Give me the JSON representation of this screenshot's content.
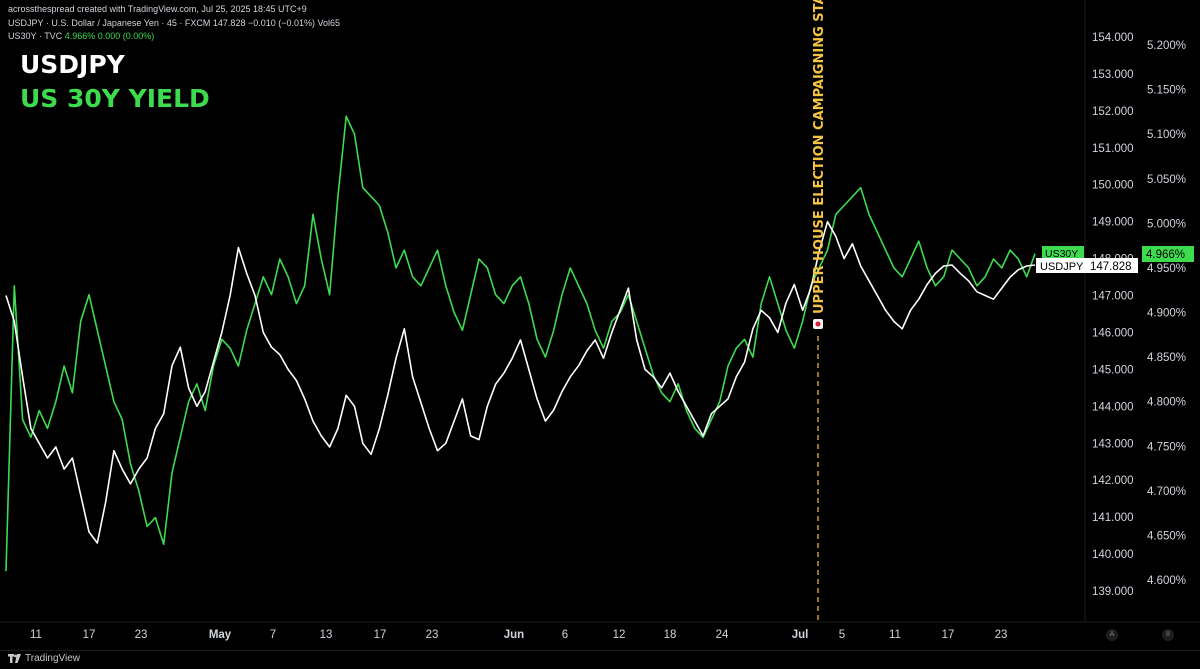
{
  "header": {
    "line1_prefix": "acrossthespread created with TradingView.com, Jul 25, 2025 18:45 UTC+9",
    "line2": "USDJPY · U.S. Dollar / Japanese Yen · 45 · FXCM  147.828  −0.010 (−0.01%)  Vol65",
    "line3_symbol": "US30Y · TVC",
    "line3_values": "4.966%  0.000 (0.00%)"
  },
  "title_usdjpy": "USDJPY",
  "title_us30y": "US 30Y YIELD",
  "annotation": "UPPER HOUSE ELECTION CAMPAIGNING START",
  "footer_brand": "TradingView",
  "scale_buttons": {
    "a": "A",
    "b": "8"
  },
  "colors": {
    "usdjpy": "#ffffff",
    "us30y": "#3ddc4f",
    "annotation": "#f5c542",
    "background": "#000000"
  },
  "chart_data": {
    "type": "line",
    "x_labels": [
      "11",
      "17",
      "23",
      "May",
      "7",
      "13",
      "17",
      "23",
      "Jun",
      "6",
      "12",
      "18",
      "24",
      "Jul",
      "5",
      "11",
      "17",
      "23"
    ],
    "left_axis_ticks": [
      "154.000",
      "153.000",
      "152.000",
      "151.000",
      "150.000",
      "149.000",
      "148.000",
      "147.000",
      "146.000",
      "145.000",
      "144.000",
      "143.000",
      "142.000",
      "141.000",
      "140.000",
      "139.000"
    ],
    "right_axis_ticks": [
      "5.200%",
      "5.150%",
      "5.100%",
      "5.050%",
      "5.000%",
      "4.950%",
      "4.900%",
      "4.850%",
      "4.800%",
      "4.750%",
      "4.700%",
      "4.650%",
      "4.600%"
    ],
    "last_values": {
      "usdjpy_label": "USDJPY",
      "usdjpy_value": "147.828",
      "us30y_label": "US30Y",
      "us30y_value": "4.966%"
    },
    "series": [
      {
        "name": "USDJPY",
        "axis": "left",
        "x": [
          0,
          1,
          2,
          3,
          4,
          5,
          6,
          7,
          8,
          9,
          10,
          11,
          12,
          13,
          14,
          15,
          16,
          17,
          18,
          19,
          20,
          21,
          22,
          23,
          24,
          25,
          26,
          27,
          28,
          29,
          30,
          31,
          32,
          33,
          34,
          35,
          36,
          37,
          38,
          39,
          40,
          41,
          42,
          43,
          44,
          45,
          46,
          47,
          48,
          49,
          50,
          51,
          52,
          53,
          54,
          55,
          56,
          57,
          58,
          59,
          60,
          61,
          62,
          63,
          64,
          65,
          66,
          67,
          68,
          69,
          70,
          71,
          72,
          73,
          74,
          75,
          76,
          77,
          78,
          79,
          80,
          81,
          82,
          83,
          84,
          85,
          86,
          87,
          88,
          89,
          90,
          91,
          92,
          93,
          94,
          95,
          96,
          97,
          98,
          99,
          100,
          101,
          102,
          103,
          104,
          105,
          106,
          107,
          108,
          109,
          110,
          111,
          112,
          113,
          114,
          115,
          116,
          117,
          118,
          119,
          120,
          121,
          122,
          123,
          124
        ],
        "values": [
          147.0,
          146.3,
          144.8,
          143.4,
          143.0,
          142.6,
          142.9,
          142.3,
          142.6,
          141.6,
          140.6,
          140.3,
          141.4,
          142.8,
          142.3,
          141.9,
          142.3,
          142.6,
          143.4,
          143.8,
          145.1,
          145.6,
          144.5,
          144.0,
          144.4,
          145.2,
          146.0,
          147.0,
          148.3,
          147.6,
          147.0,
          146.0,
          145.6,
          145.4,
          145.0,
          144.7,
          144.2,
          143.6,
          143.2,
          142.9,
          143.4,
          144.3,
          144.0,
          143.0,
          142.7,
          143.4,
          144.3,
          145.3,
          146.1,
          144.8,
          144.1,
          143.4,
          142.8,
          143.0,
          143.6,
          144.2,
          143.2,
          143.1,
          144.0,
          144.6,
          144.9,
          145.3,
          145.8,
          145.0,
          144.2,
          143.6,
          143.9,
          144.4,
          144.8,
          145.1,
          145.5,
          145.8,
          145.3,
          146.0,
          146.6,
          147.2,
          145.8,
          145.0,
          144.8,
          144.5,
          144.9,
          144.4,
          144.0,
          143.6,
          143.2,
          143.8,
          144.0,
          144.2,
          144.8,
          145.2,
          146.1,
          146.6,
          146.4,
          146.0,
          146.8,
          147.3,
          146.6,
          147.2,
          148.2,
          149.0,
          148.6,
          148.0,
          148.4,
          147.8,
          147.4,
          147.0,
          146.6,
          146.3,
          146.1,
          146.6,
          146.9,
          147.3,
          147.6,
          147.8,
          147.828,
          147.6,
          147.4,
          147.1,
          147.0,
          146.9,
          147.2,
          147.5,
          147.7,
          147.8,
          147.828
        ]
      },
      {
        "name": "US30Y",
        "axis": "right",
        "x": [
          0,
          1,
          2,
          3,
          4,
          5,
          6,
          7,
          8,
          9,
          10,
          11,
          12,
          13,
          14,
          15,
          16,
          17,
          18,
          19,
          20,
          21,
          22,
          23,
          24,
          25,
          26,
          27,
          28,
          29,
          30,
          31,
          32,
          33,
          34,
          35,
          36,
          37,
          38,
          39,
          40,
          41,
          42,
          43,
          44,
          45,
          46,
          47,
          48,
          49,
          50,
          51,
          52,
          53,
          54,
          55,
          56,
          57,
          58,
          59,
          60,
          61,
          62,
          63,
          64,
          65,
          66,
          67,
          68,
          69,
          70,
          71,
          72,
          73,
          74,
          75,
          76,
          77,
          78,
          79,
          80,
          81,
          82,
          83,
          84,
          85,
          86,
          87,
          88,
          89,
          90,
          91,
          92,
          93,
          94,
          95,
          96,
          97,
          98,
          99,
          100,
          101,
          102,
          103,
          104,
          105,
          106,
          107,
          108,
          109,
          110,
          111,
          112,
          113,
          114,
          115,
          116,
          117,
          118,
          119,
          120,
          121,
          122,
          123,
          124
        ],
        "values": [
          4.61,
          4.93,
          4.78,
          4.76,
          4.79,
          4.77,
          4.8,
          4.84,
          4.81,
          4.89,
          4.92,
          4.88,
          4.84,
          4.8,
          4.78,
          4.73,
          4.7,
          4.66,
          4.67,
          4.64,
          4.72,
          4.76,
          4.8,
          4.82,
          4.79,
          4.84,
          4.87,
          4.86,
          4.84,
          4.88,
          4.91,
          4.94,
          4.92,
          4.96,
          4.94,
          4.91,
          4.93,
          5.01,
          4.96,
          4.92,
          5.03,
          5.12,
          5.1,
          5.04,
          5.03,
          5.02,
          4.99,
          4.95,
          4.97,
          4.94,
          4.93,
          4.95,
          4.97,
          4.93,
          4.9,
          4.88,
          4.92,
          4.96,
          4.95,
          4.92,
          4.91,
          4.93,
          4.94,
          4.91,
          4.87,
          4.85,
          4.88,
          4.92,
          4.95,
          4.93,
          4.91,
          4.88,
          4.86,
          4.89,
          4.9,
          4.92,
          4.89,
          4.86,
          4.83,
          4.81,
          4.8,
          4.82,
          4.79,
          4.77,
          4.76,
          4.78,
          4.8,
          4.84,
          4.86,
          4.87,
          4.85,
          4.91,
          4.94,
          4.91,
          4.88,
          4.86,
          4.89,
          4.93,
          4.95,
          4.97,
          5.01,
          5.02,
          5.03,
          5.04,
          5.01,
          4.99,
          4.97,
          4.95,
          4.94,
          4.96,
          4.98,
          4.95,
          4.93,
          4.94,
          4.97,
          4.96,
          4.95,
          4.93,
          4.94,
          4.96,
          4.95,
          4.97,
          4.96,
          4.94,
          4.966
        ]
      }
    ]
  }
}
